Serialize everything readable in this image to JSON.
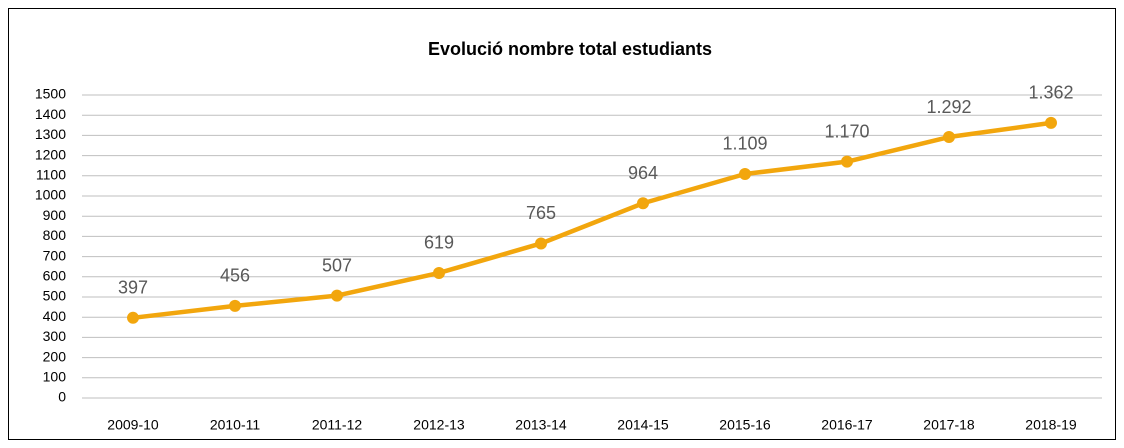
{
  "chart_data": {
    "type": "line",
    "title": "Evolució nombre total estudiants",
    "categories": [
      "2009-10",
      "2010-11",
      "2011-12",
      "2012-13",
      "2013-14",
      "2014-15",
      "2015-16",
      "2016-17",
      "2017-18",
      "2018-19"
    ],
    "series": [
      {
        "color": "#f2a60d",
        "values": [
          397,
          456,
          507,
          619,
          765,
          964,
          1109,
          1170,
          1292,
          1362
        ],
        "value_labels": [
          "397",
          "456",
          "507",
          "619",
          "765",
          "964",
          "1.109",
          "1.170",
          "1.292",
          "1.362"
        ]
      }
    ],
    "ylim": [
      0,
      1500
    ],
    "yticks": [
      0,
      100,
      200,
      300,
      400,
      500,
      600,
      700,
      800,
      900,
      1000,
      1100,
      1200,
      1300,
      1400,
      1500
    ],
    "grid": true
  }
}
